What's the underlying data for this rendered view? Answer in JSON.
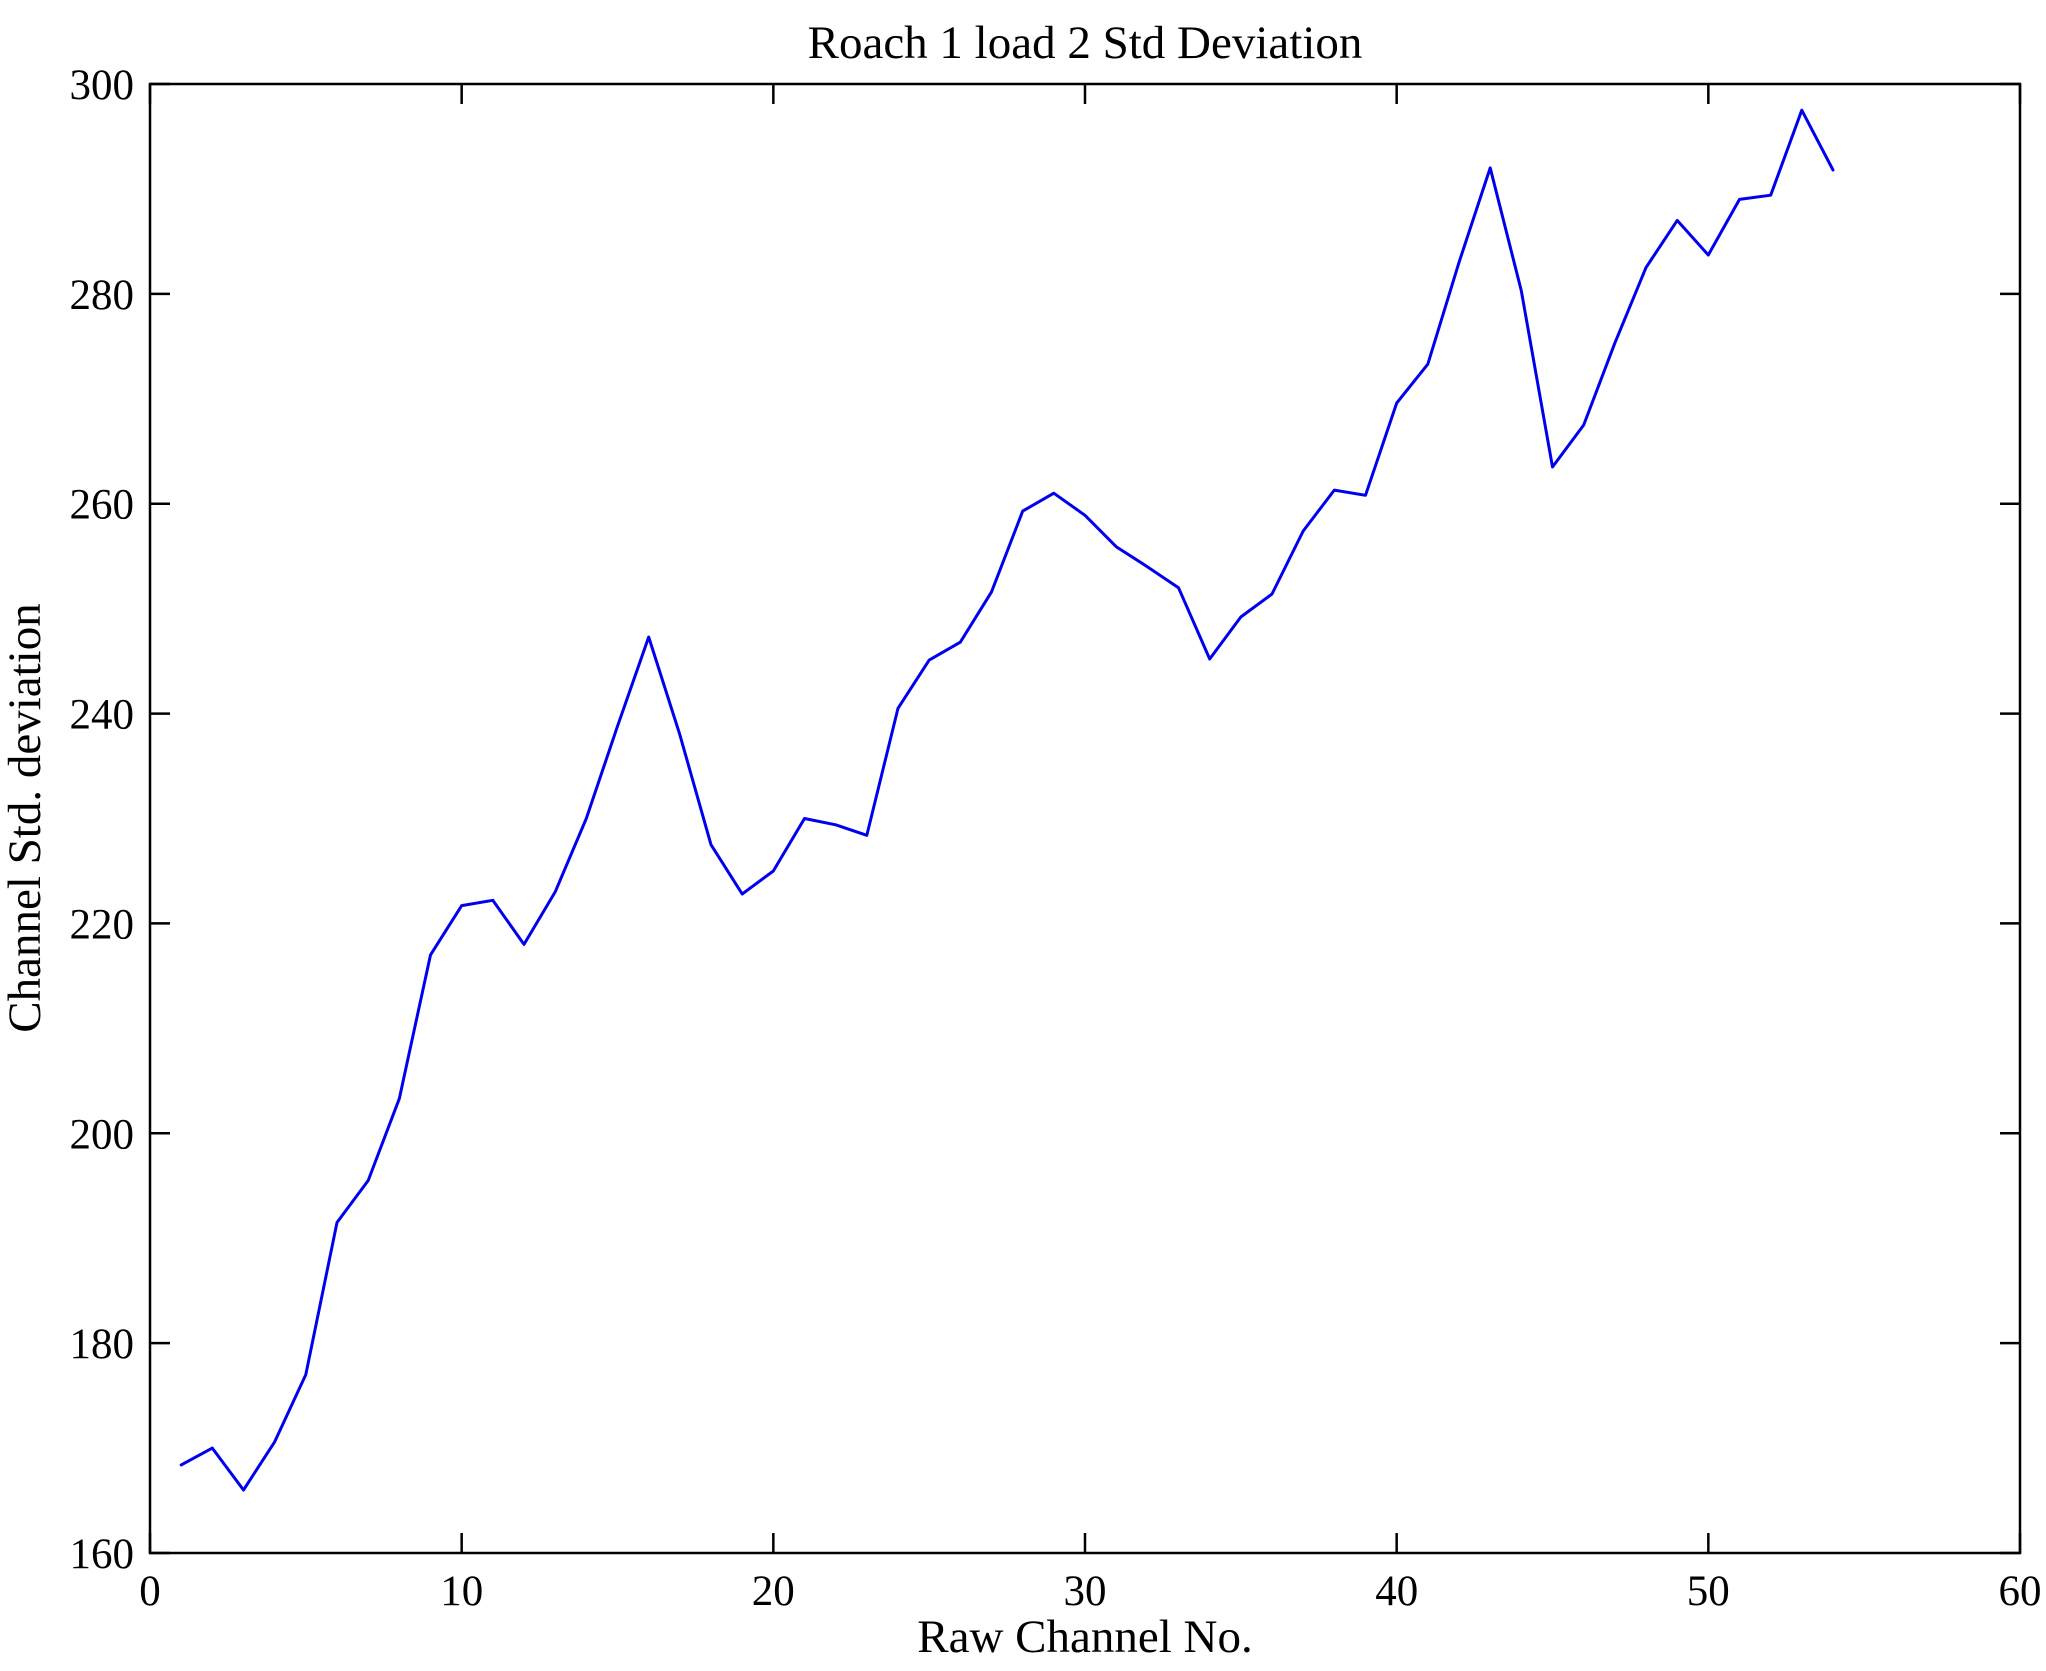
{
  "figure": {
    "background": "#ffffff"
  },
  "chart_data": {
    "type": "line",
    "title": "Roach 1 load 2 Std Deviation",
    "xlabel": "Raw Channel No.",
    "ylabel": "Channel Std. deviation",
    "xlim": [
      0,
      60
    ],
    "ylim": [
      160,
      300
    ],
    "xticks": [
      0,
      10,
      20,
      30,
      40,
      50,
      60
    ],
    "yticks": [
      160,
      180,
      200,
      220,
      240,
      260,
      280,
      300
    ],
    "grid": false,
    "legend_position": "none",
    "box": true,
    "tick_direction": "in",
    "line_color": "#0000EE",
    "axis_color": "#000000",
    "series": [
      {
        "name": "Channel Std. deviation",
        "x": [
          1,
          2,
          3,
          4,
          5,
          6,
          7,
          8,
          9,
          10,
          11,
          12,
          13,
          14,
          15,
          16,
          17,
          18,
          19,
          20,
          21,
          22,
          23,
          24,
          25,
          26,
          27,
          28,
          29,
          30,
          31,
          32,
          33,
          34,
          35,
          36,
          37,
          38,
          39,
          40,
          41,
          42,
          43,
          44,
          45,
          46,
          47,
          48,
          49,
          50,
          51,
          52,
          53,
          54
        ],
        "y": [
          168.4,
          170.0,
          166.0,
          170.6,
          177.0,
          191.5,
          195.5,
          203.3,
          217.0,
          221.7,
          222.2,
          218.0,
          223.0,
          230.0,
          238.8,
          247.3,
          238.0,
          227.5,
          222.8,
          225.0,
          230.0,
          229.4,
          228.4,
          240.5,
          245.1,
          246.8,
          251.6,
          259.3,
          261.0,
          258.9,
          255.9,
          254.0,
          252.0,
          245.2,
          249.2,
          251.4,
          257.4,
          261.3,
          260.8,
          269.6,
          273.3,
          283.0,
          292.0,
          280.3,
          263.5,
          267.5,
          275.3,
          282.5,
          287.0,
          283.7,
          289.0,
          289.4,
          297.5,
          291.8
        ]
      }
    ]
  }
}
